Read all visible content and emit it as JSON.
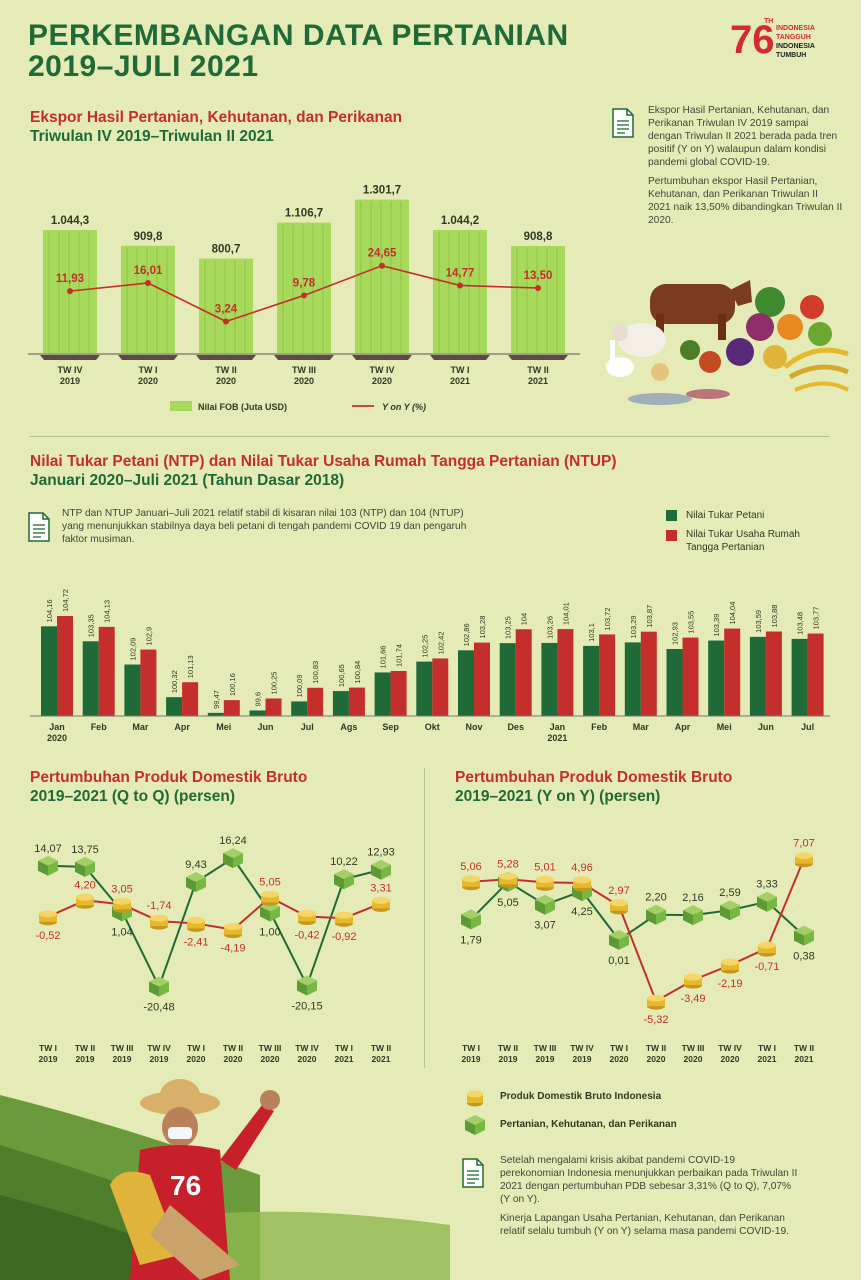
{
  "title": "PERKEMBANGAN DATA PERTANIAN\n2019–JULI 2021",
  "logo": {
    "number": "76",
    "superscript": "TH",
    "lines": [
      "INDONESIA",
      "TANGGUH",
      "INDONESIA",
      "TUMBUH"
    ]
  },
  "colors": {
    "green": "#1f6a36",
    "red": "#c42f2b",
    "light_green": "#a7d95a",
    "gold": "#e6b82c",
    "cube_green": "#77b843",
    "background": "#e5ebb6"
  },
  "ekspor": {
    "title_line1": "Ekspor Hasil Pertanian, Kehutanan, dan Perikanan",
    "title_line2": "Triwulan IV 2019–Triwulan II 2021",
    "note_p1": "Ekspor Hasil Pertanian, Kehutanan, dan Perikanan Triwulan IV 2019 sampai dengan Triwulan II 2021 berada pada tren positif (Y on Y) walaupun dalam kondisi pandemi global COVID-19.",
    "note_p2": "Pertumbuhan ekspor Hasil Pertanian, Kehutanan, dan Perikanan Triwulan II 2021 naik 13,50% dibandingkan Triwulan II 2020.",
    "legend_bar": "Nilai FOB (Juta USD)",
    "legend_line": "Y on Y (%)"
  },
  "ntp": {
    "title_line1": "Nilai Tukar Petani (NTP) dan Nilai Tukar Usaha Rumah Tangga Pertanian (NTUP)",
    "title_line2": "Januari 2020–Juli 2021 (Tahun Dasar 2018)",
    "note": "NTP dan NTUP Januari–Juli 2021 relatif stabil di kisaran nilai 103 (NTP) dan 104 (NTUP) yang menunjukkan stabilnya daya beli petani di tengah pandemi COVID 19 dan pengaruh faktor musiman.",
    "legend_ntp": "Nilai Tukar Petani",
    "legend_ntup": "Nilai Tukar Usaha Rumah Tangga Pertanian"
  },
  "pdb_qq": {
    "title_line1": "Pertumbuhan Produk Domestik Bruto",
    "title_line2": "2019–2021 (Q to Q) (persen)"
  },
  "pdb_yy": {
    "title_line1": "Pertumbuhan Produk Domestik Bruto",
    "title_line2": "2019–2021 (Y on Y) (persen)"
  },
  "pdb_legend": {
    "pdb": "Produk Domestik Bruto Indonesia",
    "pertanian": "Pertanian, Kehutanan, dan Perikanan"
  },
  "pdb_note": {
    "p1": "Setelah mengalami krisis akibat pandemi COVID-19 perekonomian Indonesia menunjukkan perbaikan pada Triwulan II 2021 dengan pertumbuhan PDB sebesar 3,31% (Q to Q), 7,07% (Y on Y).",
    "p2": "Kinerja Lapangan Usaha Pertanian, Kehutanan, dan Perikanan relatif selalu tumbuh (Y on Y) selama masa pandemi COVID-19."
  },
  "chart_data": [
    {
      "type": "bar",
      "id": "ekspor",
      "categories": [
        [
          "TW IV",
          "2019"
        ],
        [
          "TW I",
          "2020"
        ],
        [
          "TW II",
          "2020"
        ],
        [
          "TW III",
          "2020"
        ],
        [
          "TW IV",
          "2020"
        ],
        [
          "TW I",
          "2021"
        ],
        [
          "TW II",
          "2021"
        ]
      ],
      "series": [
        {
          "name": "Nilai FOB (Juta USD)",
          "kind": "bar",
          "values": [
            1044.3,
            909.8,
            800.7,
            1106.7,
            1301.7,
            1044.2,
            908.8
          ],
          "labels": [
            "1.044,3",
            "909,8",
            "800,7",
            "1.106,7",
            "1.301,7",
            "1.044,2",
            "908,8"
          ]
        },
        {
          "name": "Y on Y (%)",
          "kind": "line",
          "values": [
            11.93,
            16.01,
            -3.24,
            9.78,
            24.65,
            14.77,
            13.5
          ],
          "labels": [
            "11,93",
            "16,01",
            "3,24",
            "9,78",
            "24,65",
            "14,77",
            "13,50"
          ]
        }
      ]
    },
    {
      "type": "bar",
      "id": "ntp",
      "categories": [
        [
          "Jan",
          "2020"
        ],
        [
          "Feb",
          ""
        ],
        [
          "Mar",
          ""
        ],
        [
          "Apr",
          ""
        ],
        [
          "Mei",
          ""
        ],
        [
          "Jun",
          ""
        ],
        [
          "Jul",
          ""
        ],
        [
          "Ags",
          ""
        ],
        [
          "Sep",
          ""
        ],
        [
          "Okt",
          ""
        ],
        [
          "Nov",
          ""
        ],
        [
          "Des",
          ""
        ],
        [
          "Jan",
          "2021"
        ],
        [
          "Feb",
          ""
        ],
        [
          "Mar",
          ""
        ],
        [
          "Apr",
          ""
        ],
        [
          "Mei",
          ""
        ],
        [
          "Jun",
          ""
        ],
        [
          "Jul",
          ""
        ]
      ],
      "series": [
        {
          "name": "Nilai Tukar Petani",
          "values": [
            104.16,
            103.35,
            102.09,
            100.32,
            99.47,
            99.6,
            100.09,
            100.65,
            101.66,
            102.25,
            102.86,
            103.25,
            103.26,
            103.1,
            103.29,
            102.93,
            103.39,
            103.59,
            103.48
          ],
          "labels": [
            "104,16",
            "103,35",
            "102,09",
            "100,32",
            "99,47",
            "99,6",
            "100,09",
            "100,65",
            "101,66",
            "102,25",
            "102,86",
            "103,25",
            "103,26",
            "103,1",
            "103,29",
            "102,93",
            "103,39",
            "103,59",
            "103,48"
          ]
        },
        {
          "name": "Nilai Tukar Usaha Rumah Tangga Pertanian",
          "values": [
            104.72,
            104.13,
            102.9,
            101.13,
            100.16,
            100.25,
            100.83,
            100.84,
            101.74,
            102.42,
            103.28,
            104,
            104.01,
            103.72,
            103.87,
            103.55,
            104.04,
            103.88,
            103.77
          ],
          "labels": [
            "104,72",
            "104,13",
            "102,9",
            "101,13",
            "100,16",
            "100,25",
            "100,83",
            "100,84",
            "101,74",
            "102,42",
            "103,28",
            "104",
            "104,01",
            "103,72",
            "103,87",
            "103,55",
            "104,04",
            "103,88",
            "103,77"
          ]
        }
      ],
      "ylim": [
        99,
        105
      ]
    },
    {
      "type": "line",
      "id": "pdb_qq",
      "categories": [
        [
          "TW I",
          "2019"
        ],
        [
          "TW II",
          "2019"
        ],
        [
          "TW III",
          "2019"
        ],
        [
          "TW IV",
          "2019"
        ],
        [
          "TW I",
          "2020"
        ],
        [
          "TW II",
          "2020"
        ],
        [
          "TW III",
          "2020"
        ],
        [
          "TW IV",
          "2020"
        ],
        [
          "TW I",
          "2021"
        ],
        [
          "TW II",
          "2021"
        ]
      ],
      "series": [
        {
          "name": "Produk Domestik Bruto Indonesia",
          "values": [
            -0.52,
            4.2,
            3.05,
            -1.74,
            -2.41,
            -4.19,
            5.05,
            -0.42,
            -0.92,
            3.31
          ],
          "labels": [
            "-0,52",
            "4,20",
            "3,05",
            "-1,74",
            "-2,41",
            "-4,19",
            "5,05",
            "-0,42",
            "-0,92",
            "3,31"
          ]
        },
        {
          "name": "Pertanian, Kehutanan, dan Perikanan",
          "values": [
            14.07,
            13.75,
            1.04,
            -20.48,
            9.43,
            16.24,
            1.0,
            -20.15,
            10.22,
            12.93
          ],
          "labels": [
            "14,07",
            "13,75",
            "1,04",
            "-20,48",
            "9,43",
            "16,24",
            "1,00",
            "-20,15",
            "10,22",
            "12,93"
          ]
        }
      ]
    },
    {
      "type": "line",
      "id": "pdb_yy",
      "categories": [
        [
          "TW I",
          "2019"
        ],
        [
          "TW II",
          "2019"
        ],
        [
          "TW III",
          "2019"
        ],
        [
          "TW IV",
          "2019"
        ],
        [
          "TW I",
          "2020"
        ],
        [
          "TW II",
          "2020"
        ],
        [
          "TW III",
          "2020"
        ],
        [
          "TW IV",
          "2020"
        ],
        [
          "TW I",
          "2021"
        ],
        [
          "TW II",
          "2021"
        ]
      ],
      "series": [
        {
          "name": "Produk Domestik Bruto Indonesia",
          "values": [
            5.06,
            5.28,
            5.01,
            4.96,
            2.97,
            -5.32,
            -3.49,
            -2.19,
            -0.71,
            7.07
          ],
          "labels": [
            "5,06",
            "5,28",
            "5,01",
            "4,96",
            "2,97",
            "-5,32",
            "-3,49",
            "-2,19",
            "-0,71",
            "7,07"
          ]
        },
        {
          "name": "Pertanian, Kehutanan, dan Perikanan",
          "values": [
            1.79,
            5.05,
            3.07,
            4.25,
            0.01,
            2.2,
            2.16,
            2.59,
            3.33,
            0.38
          ],
          "labels": [
            "1,79",
            "5,05",
            "3,07",
            "4,25",
            "0,01",
            "2,20",
            "2,16",
            "2,59",
            "3,33",
            "0,38"
          ]
        }
      ]
    }
  ]
}
